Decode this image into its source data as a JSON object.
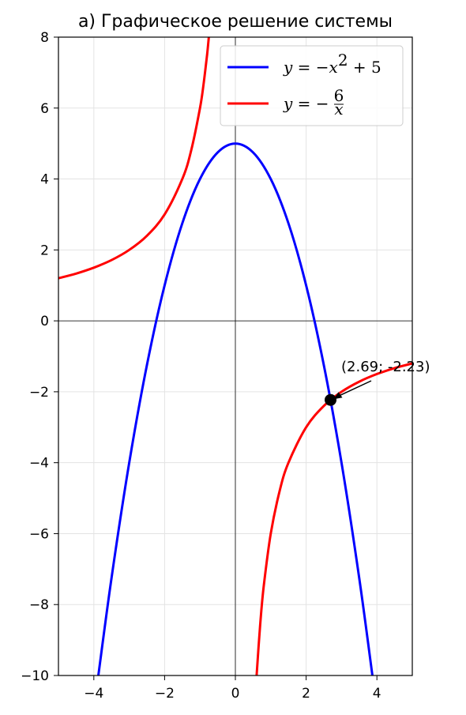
{
  "chart_data": {
    "type": "line",
    "title": "а) Графическое решение системы",
    "xlim": [
      -5,
      5
    ],
    "ylim": [
      -10,
      8
    ],
    "x_ticks": [
      -4,
      -2,
      0,
      2,
      4
    ],
    "y_ticks": [
      8,
      6,
      4,
      2,
      0,
      -2,
      -4,
      -6,
      -8,
      -10
    ],
    "x_tick_labels": [
      "−4",
      "−2",
      "0",
      "2",
      "4"
    ],
    "y_tick_labels": [
      "8",
      "6",
      "4",
      "2",
      "0",
      "−2",
      "−4",
      "−6",
      "−8",
      "−10"
    ],
    "grid": true,
    "legend_position": "top-right",
    "series": [
      {
        "name": "y = −x² + 5",
        "color": "#0000ff",
        "x": [
          -3.873,
          -3.5,
          -3.0,
          -2.5,
          -2.0,
          -1.5,
          -1.0,
          -0.5,
          0.0,
          0.5,
          1.0,
          1.5,
          2.0,
          2.5,
          3.0,
          3.5,
          3.873
        ],
        "y": [
          -10,
          -7.25,
          -4,
          -1.25,
          1,
          2.75,
          4,
          4.75,
          5,
          4.75,
          4,
          2.75,
          1,
          -1.25,
          -4,
          -7.25,
          -10
        ]
      },
      {
        "name": "y = −6/x",
        "color": "#ff0000",
        "x": [
          -5,
          -4.5,
          -4,
          -3.5,
          -3,
          -2.5,
          -2,
          -1.5,
          -1.25,
          -1,
          -0.9,
          -0.8,
          -0.75,
          0.6,
          0.7,
          0.8,
          1,
          1.25,
          1.5,
          2,
          2.5,
          3,
          3.5,
          4,
          4.5,
          5
        ],
        "y": [
          1.2,
          1.333,
          1.5,
          1.714,
          2,
          2.4,
          3,
          4,
          4.8,
          6,
          6.667,
          7.5,
          8,
          -10,
          -8.571,
          -7.5,
          -6,
          -4.8,
          -4,
          -3,
          -2.4,
          -2,
          -1.714,
          -1.5,
          -1.333,
          -1.2
        ]
      }
    ],
    "intersection_point": {
      "x": 2.69,
      "y": -2.23
    },
    "annotation": "(2.69; -2.23)",
    "legend": [
      {
        "label": "y = −x² + 5",
        "color": "#0000ff"
      },
      {
        "label": "y = −6/x",
        "color": "#ff0000"
      }
    ]
  }
}
